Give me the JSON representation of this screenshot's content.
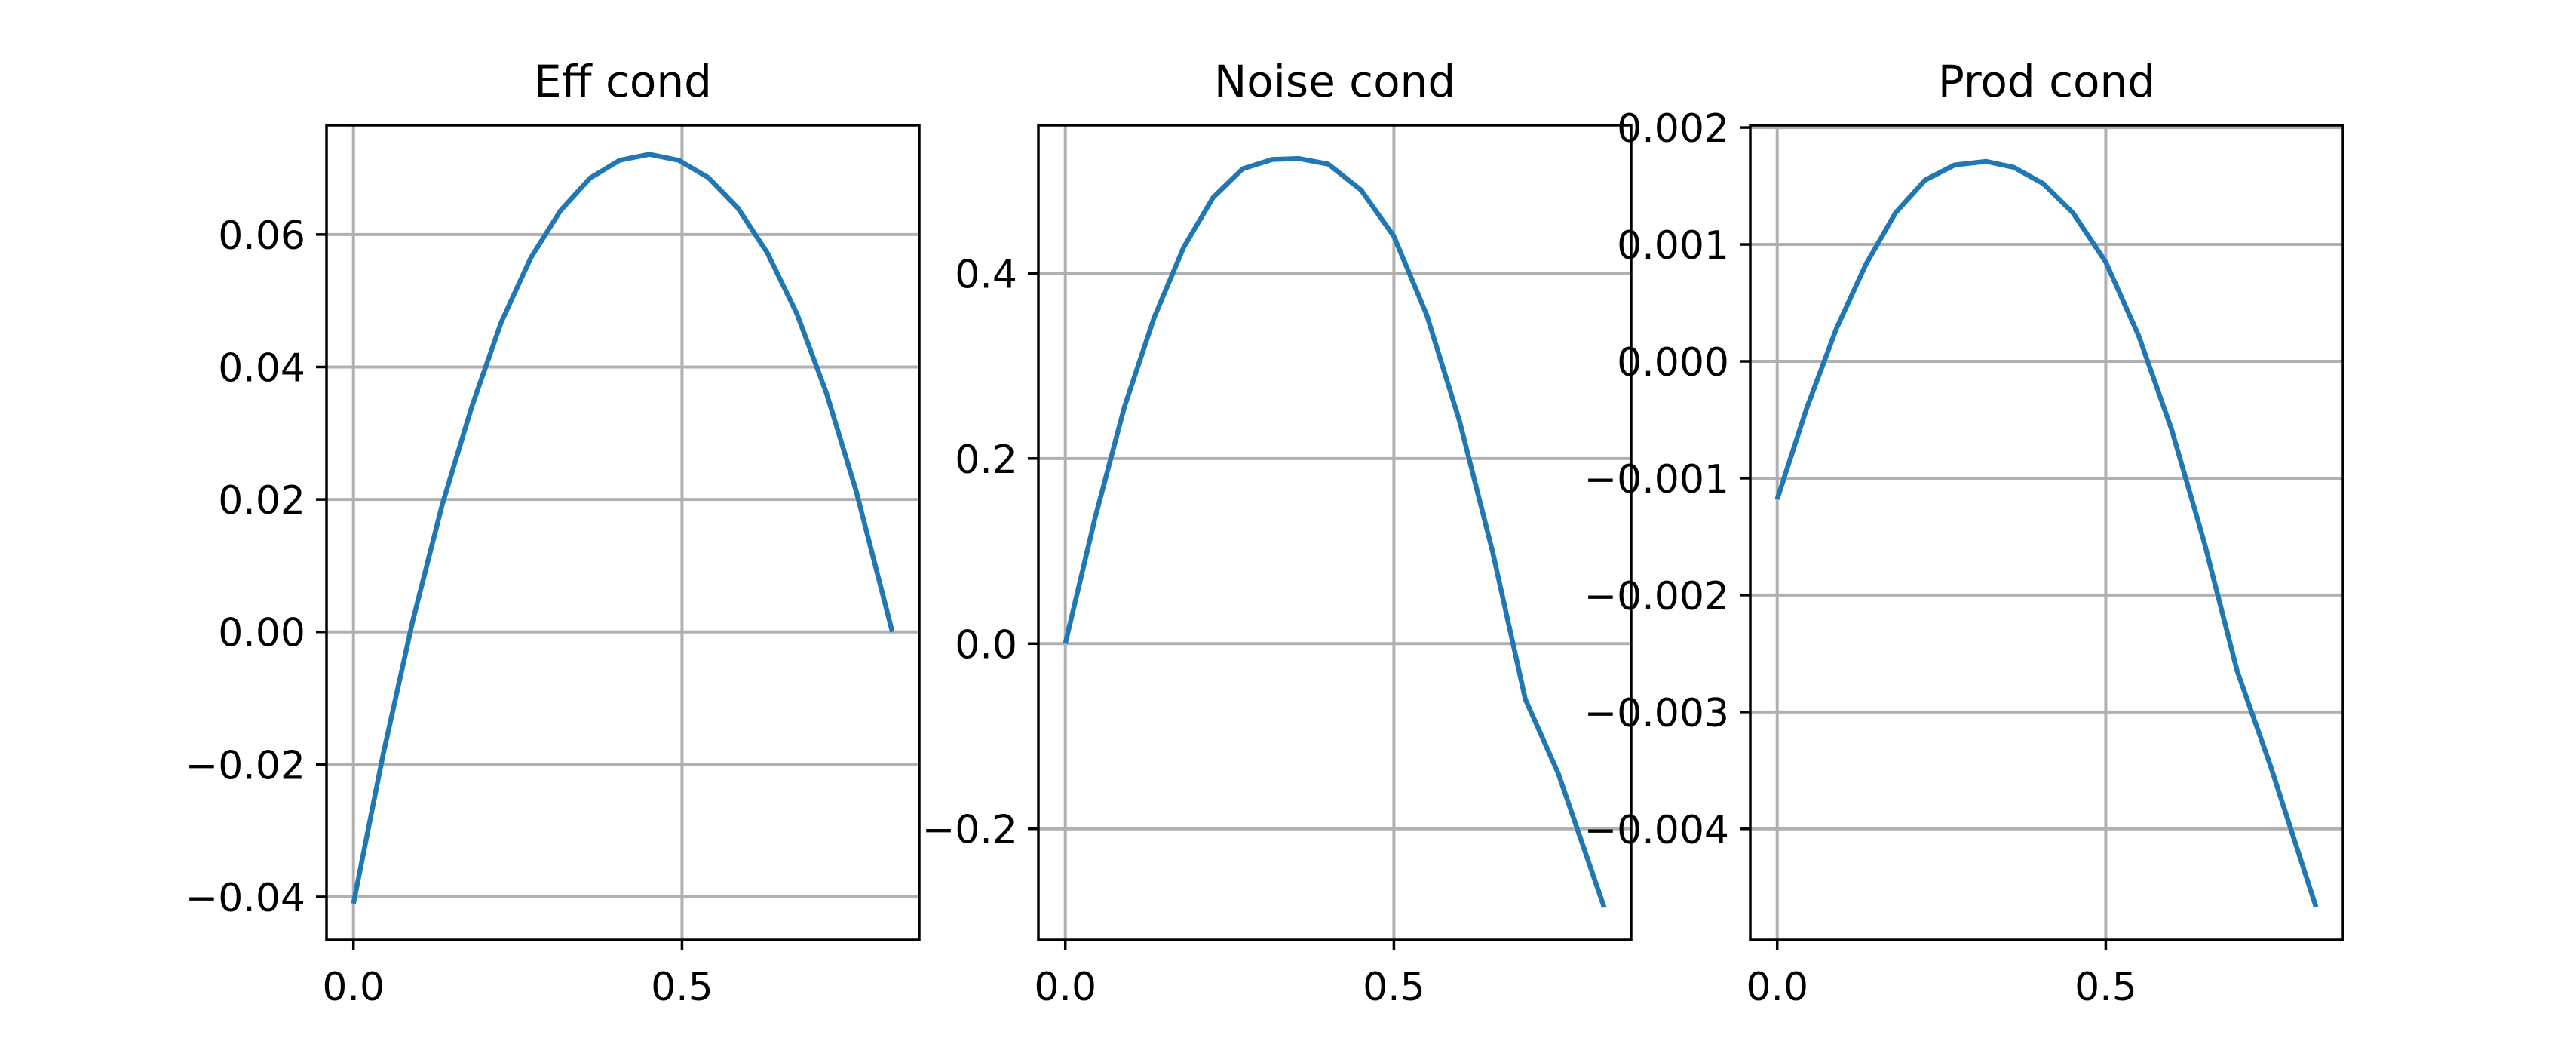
{
  "chart_data": [
    {
      "type": "line",
      "title": "Eff cond",
      "xlabel": "",
      "ylabel": "",
      "grid": true,
      "xlim": [
        -0.041,
        0.861
      ],
      "ylim": [
        -0.0465,
        0.0765
      ],
      "xticks": [
        0.0,
        0.5
      ],
      "xtick_labels": [
        "0.0",
        "0.5"
      ],
      "yticks": [
        -0.04,
        -0.02,
        0.0,
        0.02,
        0.04,
        0.06
      ],
      "ytick_labels": [
        "−0.04",
        "−0.02",
        "0.00",
        "0.02",
        "0.04",
        "0.06"
      ],
      "series": [
        {
          "color": "#1f77b4",
          "x": [
            0.0,
            0.045,
            0.09,
            0.135,
            0.18,
            0.225,
            0.27,
            0.315,
            0.36,
            0.405,
            0.45,
            0.495,
            0.54,
            0.585,
            0.63,
            0.675,
            0.72,
            0.765,
            0.82
          ],
          "y": [
            -0.041,
            -0.0186,
            0.0016,
            0.0192,
            0.034,
            0.0468,
            0.0565,
            0.0636,
            0.0685,
            0.0712,
            0.0721,
            0.0712,
            0.0686,
            0.064,
            0.0572,
            0.048,
            0.036,
            0.0213,
            0.0
          ]
        }
      ]
    },
    {
      "type": "line",
      "title": "Noise cond",
      "xlabel": "",
      "ylabel": "",
      "grid": true,
      "xlim": [
        -0.041,
        0.861
      ],
      "ylim": [
        -0.32,
        0.56
      ],
      "xticks": [
        0.0,
        0.5
      ],
      "xtick_labels": [
        "0.0",
        "0.5"
      ],
      "yticks": [
        -0.2,
        0.0,
        0.2,
        0.4
      ],
      "ytick_labels": [
        "−0.2",
        "0.0",
        "0.2",
        "0.4"
      ],
      "series": [
        {
          "color": "#1f77b4",
          "x": [
            0.0,
            0.045,
            0.09,
            0.135,
            0.18,
            0.225,
            0.27,
            0.315,
            0.355,
            0.4,
            0.45,
            0.5,
            0.55,
            0.6,
            0.65,
            0.7,
            0.75,
            0.82
          ],
          "y": [
            0.0,
            0.135,
            0.256,
            0.352,
            0.428,
            0.482,
            0.513,
            0.523,
            0.524,
            0.518,
            0.49,
            0.44,
            0.355,
            0.24,
            0.1,
            -0.06,
            -0.14,
            -0.285
          ]
        }
      ]
    },
    {
      "type": "line",
      "title": "Prod cond",
      "xlabel": "",
      "ylabel": "",
      "grid": true,
      "xlim": [
        -0.041,
        0.861
      ],
      "ylim": [
        -0.00495,
        0.00202
      ],
      "xticks": [
        0.0,
        0.5
      ],
      "xtick_labels": [
        "0.0",
        "0.5"
      ],
      "yticks": [
        -0.004,
        -0.003,
        -0.002,
        -0.001,
        0.0,
        0.001,
        0.002
      ],
      "ytick_labels": [
        "−0.004",
        "−0.003",
        "−0.002",
        "−0.001",
        "0.000",
        "0.001",
        "0.002"
      ],
      "series": [
        {
          "color": "#1f77b4",
          "x": [
            0.0,
            0.045,
            0.09,
            0.135,
            0.18,
            0.225,
            0.27,
            0.318,
            0.36,
            0.405,
            0.45,
            0.5,
            0.55,
            0.6,
            0.65,
            0.7,
            0.75,
            0.82
          ],
          "y": [
            -0.00118,
            -0.0004,
            0.00028,
            0.00083,
            0.00127,
            0.00155,
            0.00168,
            0.00171,
            0.00166,
            0.00152,
            0.00127,
            0.00085,
            0.00022,
            -0.00058,
            -0.00155,
            -0.00265,
            -0.00345,
            -0.00467
          ]
        }
      ]
    }
  ]
}
